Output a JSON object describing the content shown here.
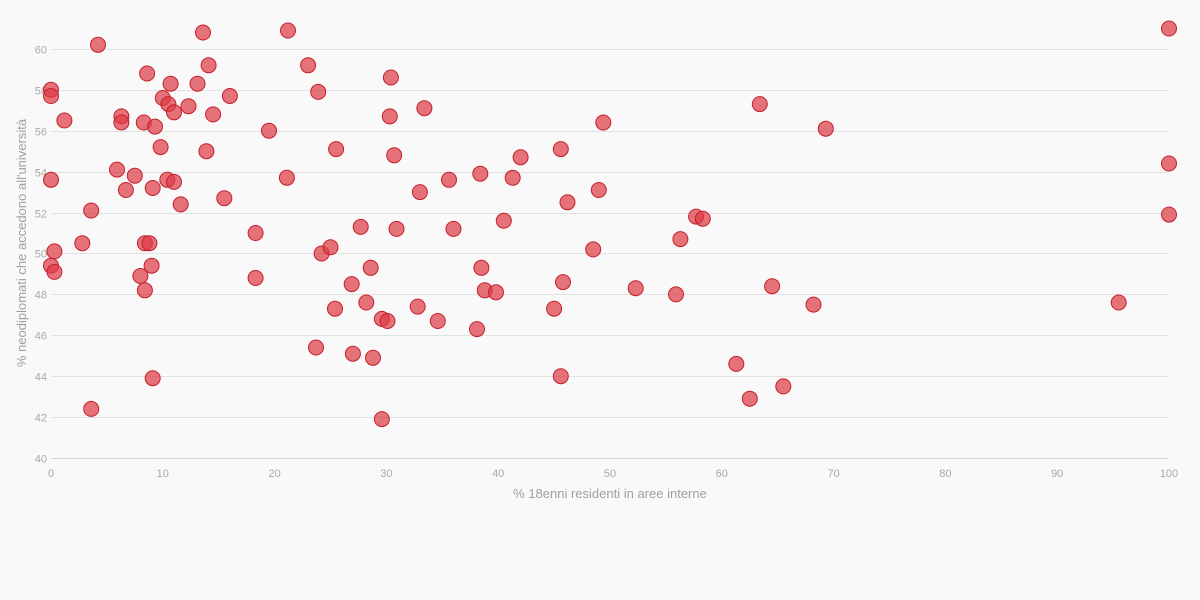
{
  "chart_data": {
    "type": "scatter",
    "title": "",
    "xlabel": "% 18enni residenti in aree interne",
    "ylabel": "% neodiplomati che accedono all'università",
    "xlim": [
      0,
      100
    ],
    "ylim": [
      40,
      62
    ],
    "x_ticks": [
      "0",
      "10",
      "20",
      "30",
      "40",
      "50",
      "60",
      "70",
      "80",
      "90",
      "100"
    ],
    "y_ticks": [
      "40",
      "42",
      "44",
      "46",
      "48",
      "50",
      "52",
      "54",
      "56",
      "58",
      "60"
    ],
    "grid": true,
    "point_color": "#dc3c46",
    "series": [
      {
        "points": [
          [
            0,
            58.0
          ],
          [
            0,
            57.7
          ],
          [
            0,
            53.6
          ],
          [
            0,
            49.4
          ],
          [
            0.3,
            49.1
          ],
          [
            0.3,
            50.1
          ],
          [
            1.2,
            56.5
          ],
          [
            2.8,
            50.5
          ],
          [
            3.6,
            52.1
          ],
          [
            3.6,
            42.4
          ],
          [
            4.2,
            60.2
          ],
          [
            5.9,
            54.1
          ],
          [
            6.3,
            56.7
          ],
          [
            6.3,
            56.4
          ],
          [
            6.7,
            53.1
          ],
          [
            7.5,
            53.8
          ],
          [
            8.0,
            48.9
          ],
          [
            8.4,
            48.2
          ],
          [
            8.3,
            56.4
          ],
          [
            8.4,
            50.5
          ],
          [
            8.6,
            58.8
          ],
          [
            8.8,
            50.5
          ],
          [
            9.0,
            49.4
          ],
          [
            9.1,
            53.2
          ],
          [
            9.1,
            43.9
          ],
          [
            9.3,
            56.2
          ],
          [
            9.8,
            55.2
          ],
          [
            10.0,
            57.6
          ],
          [
            10.4,
            53.6
          ],
          [
            10.5,
            57.3
          ],
          [
            10.7,
            58.3
          ],
          [
            11.0,
            53.5
          ],
          [
            11.0,
            56.9
          ],
          [
            11.6,
            52.4
          ],
          [
            12.3,
            57.2
          ],
          [
            13.1,
            58.3
          ],
          [
            13.6,
            60.8
          ],
          [
            13.9,
            55.0
          ],
          [
            14.1,
            59.2
          ],
          [
            14.5,
            56.8
          ],
          [
            15.5,
            52.7
          ],
          [
            16.0,
            57.7
          ],
          [
            18.3,
            51.0
          ],
          [
            18.3,
            48.8
          ],
          [
            19.5,
            56.0
          ],
          [
            21.1,
            53.7
          ],
          [
            21.2,
            60.9
          ],
          [
            23.0,
            59.2
          ],
          [
            23.7,
            45.4
          ],
          [
            23.9,
            57.9
          ],
          [
            24.2,
            50.0
          ],
          [
            25.0,
            50.3
          ],
          [
            25.4,
            47.3
          ],
          [
            25.5,
            55.1
          ],
          [
            26.9,
            48.5
          ],
          [
            27.0,
            45.1
          ],
          [
            27.7,
            51.3
          ],
          [
            28.2,
            47.6
          ],
          [
            28.6,
            49.3
          ],
          [
            28.8,
            44.9
          ],
          [
            29.6,
            46.8
          ],
          [
            29.6,
            41.9
          ],
          [
            30.1,
            46.7
          ],
          [
            30.3,
            56.7
          ],
          [
            30.4,
            58.6
          ],
          [
            30.7,
            54.8
          ],
          [
            30.9,
            51.2
          ],
          [
            32.8,
            47.4
          ],
          [
            33.0,
            53.0
          ],
          [
            33.4,
            57.1
          ],
          [
            34.6,
            46.7
          ],
          [
            35.6,
            53.6
          ],
          [
            36.0,
            51.2
          ],
          [
            38.1,
            46.3
          ],
          [
            38.4,
            53.9
          ],
          [
            38.5,
            49.3
          ],
          [
            38.8,
            48.2
          ],
          [
            39.8,
            48.1
          ],
          [
            40.5,
            51.6
          ],
          [
            41.3,
            53.7
          ],
          [
            42.0,
            54.7
          ],
          [
            45.0,
            47.3
          ],
          [
            45.6,
            55.1
          ],
          [
            45.6,
            44.0
          ],
          [
            45.8,
            48.6
          ],
          [
            46.2,
            52.5
          ],
          [
            48.5,
            50.2
          ],
          [
            49.0,
            53.1
          ],
          [
            49.4,
            56.4
          ],
          [
            52.3,
            48.3
          ],
          [
            55.9,
            48.0
          ],
          [
            56.3,
            50.7
          ],
          [
            57.7,
            51.8
          ],
          [
            58.3,
            51.7
          ],
          [
            61.3,
            44.6
          ],
          [
            62.5,
            42.9
          ],
          [
            63.4,
            57.3
          ],
          [
            64.5,
            48.4
          ],
          [
            65.5,
            43.5
          ],
          [
            68.2,
            47.5
          ],
          [
            69.3,
            56.1
          ],
          [
            95.5,
            47.6
          ],
          [
            100.0,
            61.0
          ],
          [
            100.0,
            54.4
          ],
          [
            100.0,
            51.9
          ]
        ]
      }
    ]
  }
}
